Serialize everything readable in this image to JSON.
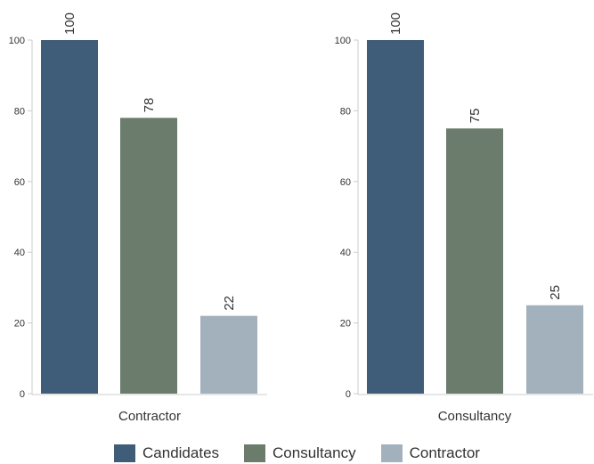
{
  "chart_data": {
    "type": "bar",
    "ylim": [
      0,
      100
    ],
    "yticks": [
      0,
      20,
      40,
      60,
      80,
      100
    ],
    "series_names": [
      "Candidates",
      "Consultancy",
      "Contractor"
    ],
    "colors": [
      "#3f5d78",
      "#6b7b6c",
      "#a3b1bd"
    ],
    "panels": [
      {
        "label": "Contractor",
        "values": [
          100,
          78,
          22
        ]
      },
      {
        "label": "Consultancy",
        "values": [
          100,
          75,
          25
        ]
      }
    ]
  },
  "legend": {
    "items": [
      {
        "label": "Candidates",
        "color": "#3f5d78"
      },
      {
        "label": "Consultancy",
        "color": "#6b7b6c"
      },
      {
        "label": "Contractor",
        "color": "#a3b1bd"
      }
    ]
  }
}
